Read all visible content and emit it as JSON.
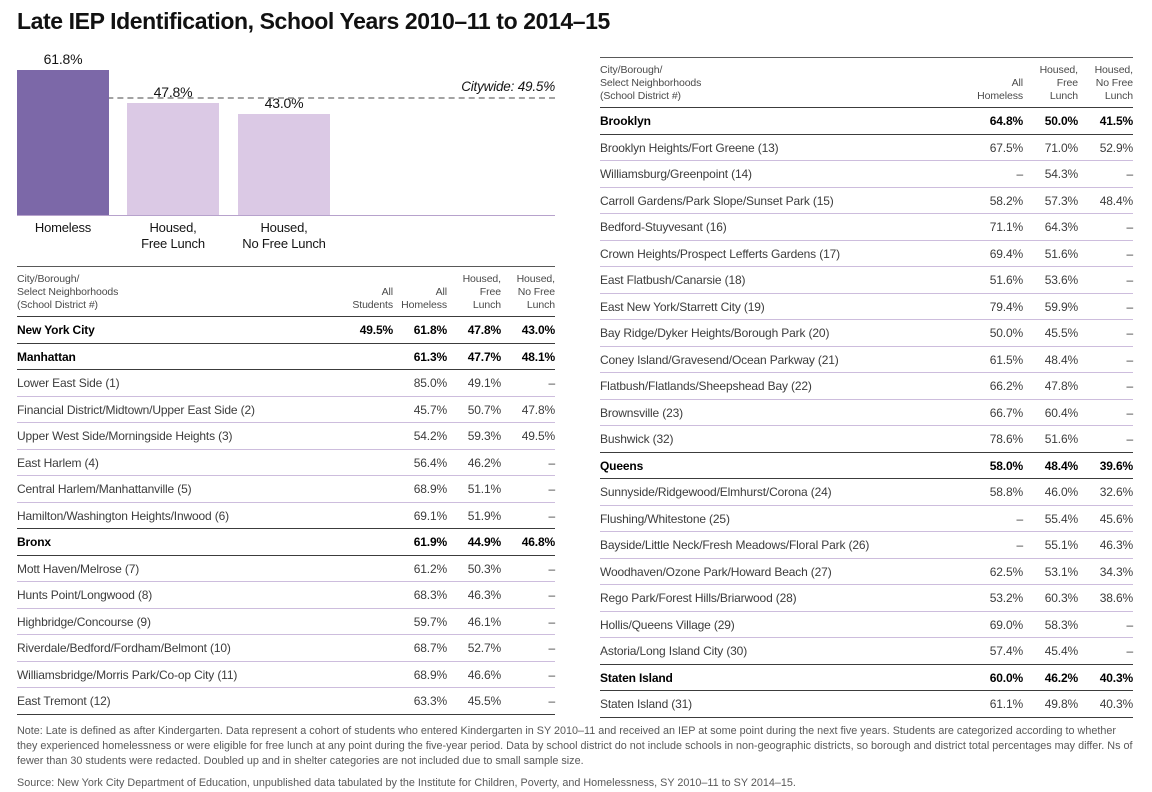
{
  "title": "Late IEP Identification, School Years 2010–11 to 2014–15",
  "chart_data": {
    "type": "bar",
    "title": "Late IEP Identification, School Years 2010–11 to 2014–15",
    "categories": [
      "Homeless",
      "Housed,\nFree Lunch",
      "Housed,\nNo Free Lunch"
    ],
    "values": [
      61.8,
      47.8,
      43.0
    ],
    "value_labels": [
      "61.8%",
      "47.8%",
      "43.0%"
    ],
    "ylim": [
      0,
      69.5
    ],
    "grid": false,
    "legend": "none",
    "reference_line": {
      "value": 49.5,
      "label": "Citywide: 49.5%"
    },
    "colors": {
      "homeless_bar": "#7c68a8",
      "housed_bar": "#dbc9e5",
      "baseline": "#b7a2cc",
      "refline": "#a3a3a3"
    }
  },
  "left_table": {
    "name_header": "City/Borough/\nSelect Neighborhoods\n(School District #)",
    "col_headers": [
      "All\nStudents",
      "All\nHomeless",
      "Housed,\nFree\nLunch",
      "Housed,\nNo Free\nLunch"
    ],
    "rows": [
      {
        "name": "New York City",
        "bold": true,
        "values": [
          "49.5%",
          "61.8%",
          "47.8%",
          "43.0%"
        ]
      },
      {
        "name": "Manhattan",
        "bold": true,
        "values": [
          "",
          "61.3%",
          "47.7%",
          "48.1%"
        ]
      },
      {
        "name": "Lower East Side (1)",
        "bold": false,
        "values": [
          "",
          "85.0%",
          "49.1%",
          "–"
        ]
      },
      {
        "name": "Financial District/Midtown/Upper East Side (2)",
        "bold": false,
        "values": [
          "",
          "45.7%",
          "50.7%",
          "47.8%"
        ]
      },
      {
        "name": "Upper West Side/Morningside Heights (3)",
        "bold": false,
        "values": [
          "",
          "54.2%",
          "59.3%",
          "49.5%"
        ]
      },
      {
        "name": "East Harlem (4)",
        "bold": false,
        "values": [
          "",
          "56.4%",
          "46.2%",
          "–"
        ]
      },
      {
        "name": "Central Harlem/Manhattanville (5)",
        "bold": false,
        "values": [
          "",
          "68.9%",
          "51.1%",
          "–"
        ]
      },
      {
        "name": "Hamilton/Washington Heights/Inwood (6)",
        "bold": false,
        "values": [
          "",
          "69.1%",
          "51.9%",
          "–"
        ]
      },
      {
        "name": "Bronx",
        "bold": true,
        "values": [
          "",
          "61.9%",
          "44.9%",
          "46.8%"
        ]
      },
      {
        "name": "Mott Haven/Melrose (7)",
        "bold": false,
        "values": [
          "",
          "61.2%",
          "50.3%",
          "–"
        ]
      },
      {
        "name": "Hunts Point/Longwood (8)",
        "bold": false,
        "values": [
          "",
          "68.3%",
          "46.3%",
          "–"
        ]
      },
      {
        "name": "Highbridge/Concourse (9)",
        "bold": false,
        "values": [
          "",
          "59.7%",
          "46.1%",
          "–"
        ]
      },
      {
        "name": "Riverdale/Bedford/Fordham/Belmont (10)",
        "bold": false,
        "values": [
          "",
          "68.7%",
          "52.7%",
          "–"
        ]
      },
      {
        "name": "Williamsbridge/Morris Park/Co-op City (11)",
        "bold": false,
        "values": [
          "",
          "68.9%",
          "46.6%",
          "–"
        ]
      },
      {
        "name": "East Tremont (12)",
        "bold": false,
        "values": [
          "",
          "63.3%",
          "45.5%",
          "–"
        ]
      }
    ]
  },
  "right_table": {
    "name_header": "City/Borough/\nSelect Neighborhoods\n(School District #)",
    "col_headers": [
      "All\nHomeless",
      "Housed,\nFree\nLunch",
      "Housed,\nNo Free\nLunch"
    ],
    "rows": [
      {
        "name": "Brooklyn",
        "bold": true,
        "values": [
          "64.8%",
          "50.0%",
          "41.5%"
        ]
      },
      {
        "name": "Brooklyn Heights/Fort Greene (13)",
        "bold": false,
        "values": [
          "67.5%",
          "71.0%",
          "52.9%"
        ]
      },
      {
        "name": "Williamsburg/Greenpoint (14)",
        "bold": false,
        "values": [
          "–",
          "54.3%",
          "–"
        ]
      },
      {
        "name": "Carroll Gardens/Park Slope/Sunset Park (15)",
        "bold": false,
        "values": [
          "58.2%",
          "57.3%",
          "48.4%"
        ]
      },
      {
        "name": "Bedford-Stuyvesant (16)",
        "bold": false,
        "values": [
          "71.1%",
          "64.3%",
          "–"
        ]
      },
      {
        "name": "Crown Heights/Prospect Lefferts Gardens (17)",
        "bold": false,
        "values": [
          "69.4%",
          "51.6%",
          "–"
        ]
      },
      {
        "name": "East Flatbush/Canarsie (18)",
        "bold": false,
        "values": [
          "51.6%",
          "53.6%",
          "–"
        ]
      },
      {
        "name": "East New York/Starrett City (19)",
        "bold": false,
        "values": [
          "79.4%",
          "59.9%",
          "–"
        ]
      },
      {
        "name": "Bay Ridge/Dyker Heights/Borough Park (20)",
        "bold": false,
        "values": [
          "50.0%",
          "45.5%",
          "–"
        ]
      },
      {
        "name": "Coney Island/Gravesend/Ocean Parkway (21)",
        "bold": false,
        "values": [
          "61.5%",
          "48.4%",
          "–"
        ]
      },
      {
        "name": "Flatbush/Flatlands/Sheepshead Bay (22)",
        "bold": false,
        "values": [
          "66.2%",
          "47.8%",
          "–"
        ]
      },
      {
        "name": "Brownsville (23)",
        "bold": false,
        "values": [
          "66.7%",
          "60.4%",
          "–"
        ]
      },
      {
        "name": "Bushwick (32)",
        "bold": false,
        "values": [
          "78.6%",
          "51.6%",
          "–"
        ]
      },
      {
        "name": "Queens",
        "bold": true,
        "values": [
          "58.0%",
          "48.4%",
          "39.6%"
        ]
      },
      {
        "name": "Sunnyside/Ridgewood/Elmhurst/Corona (24)",
        "bold": false,
        "values": [
          "58.8%",
          "46.0%",
          "32.6%"
        ]
      },
      {
        "name": "Flushing/Whitestone (25)",
        "bold": false,
        "values": [
          "–",
          "55.4%",
          "45.6%"
        ]
      },
      {
        "name": "Bayside/Little Neck/Fresh Meadows/Floral Park (26)",
        "bold": false,
        "values": [
          "–",
          "55.1%",
          "46.3%"
        ]
      },
      {
        "name": "Woodhaven/Ozone Park/Howard Beach (27)",
        "bold": false,
        "values": [
          "62.5%",
          "53.1%",
          "34.3%"
        ]
      },
      {
        "name": "Rego Park/Forest Hills/Briarwood (28)",
        "bold": false,
        "values": [
          "53.2%",
          "60.3%",
          "38.6%"
        ]
      },
      {
        "name": "Hollis/Queens Village (29)",
        "bold": false,
        "values": [
          "69.0%",
          "58.3%",
          "–"
        ]
      },
      {
        "name": "Astoria/Long Island City (30)",
        "bold": false,
        "values": [
          "57.4%",
          "45.4%",
          "–"
        ]
      },
      {
        "name": "Staten Island",
        "bold": true,
        "values": [
          "60.0%",
          "46.2%",
          "40.3%"
        ]
      },
      {
        "name": "Staten Island (31)",
        "bold": false,
        "values": [
          "61.1%",
          "49.8%",
          "40.3%"
        ]
      }
    ]
  },
  "notes": {
    "note": "Note: Late is defined as after Kindergarten. Data represent a cohort of students who entered Kindergarten in SY 2010–11 and received an IEP at some point during the next five years. Students are categorized according to whether they experienced homelessness or were eligible for free lunch at any point during the five-year period. Data by school district do not include schools in non-geographic districts, so borough and district total percentages may differ. Ns of fewer than 30 students were redacted. Doubled up and in shelter categories are not included due to small sample size.",
    "source": "Source: New York City Department of Education, unpublished data tabulated by the Institute for Children, Poverty, and Homelessness, SY 2010–11 to SY 2014–15."
  }
}
